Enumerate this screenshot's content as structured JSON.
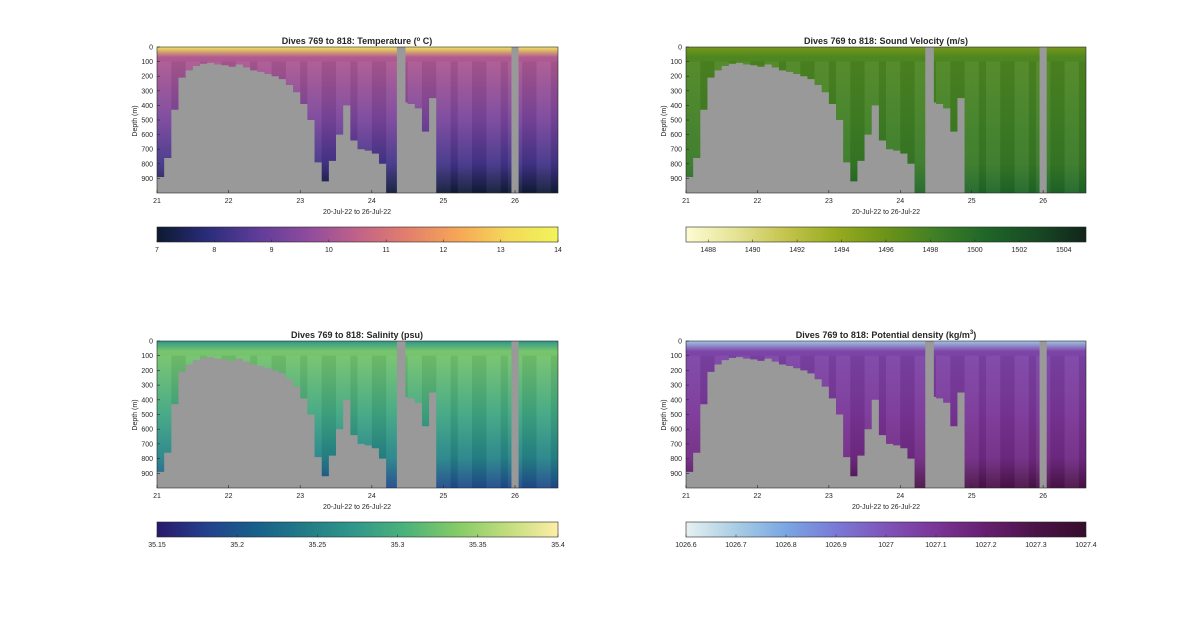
{
  "figure": {
    "background": "#ffffff",
    "land_color": "#999999",
    "axis_color": "#262626"
  },
  "chart_data": [
    {
      "type": "heatmap",
      "title": "Dives 769 to 818: Temperature (",
      "title_sup": "o",
      "title_after": " C)",
      "xlabel": "20-Jul-22 to 26-Jul-22",
      "ylabel": "Depth (m)",
      "xlim": [
        21,
        26.6
      ],
      "ylim": [
        0,
        1000
      ],
      "x_ticks": [
        21,
        22,
        23,
        24,
        25,
        26
      ],
      "y_ticks": [
        0,
        100,
        200,
        300,
        400,
        500,
        600,
        700,
        800,
        900
      ],
      "colorbar": {
        "range": [
          7,
          14
        ],
        "ticks": [
          "7",
          "8",
          "9",
          "10",
          "11",
          "12",
          "13",
          "14"
        ],
        "tick_values": [
          7,
          8,
          9,
          10,
          11,
          12,
          13,
          14
        ],
        "colormap": "thermal",
        "stops": [
          "#0c1a2e",
          "#2a2c7a",
          "#5e3c99",
          "#8e4b9e",
          "#c16288",
          "#e27f6c",
          "#f6a656",
          "#f4d958",
          "#f1f45a"
        ]
      },
      "profile": {
        "surface_value": 13.5,
        "upper_value": 10.2,
        "deep_value": 8.3,
        "bottom_value": 7.1
      }
    },
    {
      "type": "heatmap",
      "title": "Dives 769 to 818: Sound Velocity (m/s)",
      "title_sup": "",
      "title_after": "",
      "xlabel": "20-Jul-22 to 26-Jul-22",
      "ylabel": "Depth (m)",
      "xlim": [
        21,
        26.6
      ],
      "ylim": [
        0,
        1000
      ],
      "x_ticks": [
        21,
        22,
        23,
        24,
        25,
        26
      ],
      "y_ticks": [
        0,
        100,
        200,
        300,
        400,
        500,
        600,
        700,
        800,
        900
      ],
      "colorbar": {
        "range": [
          1487,
          1505
        ],
        "ticks": [
          "1488",
          "1490",
          "1492",
          "1494",
          "1496",
          "1498",
          "1500",
          "1502",
          "1504"
        ],
        "tick_values": [
          1488,
          1490,
          1492,
          1494,
          1496,
          1498,
          1500,
          1502,
          1504
        ],
        "colormap": "speed",
        "stops": [
          "#fdfcd2",
          "#e5e394",
          "#c3c44d",
          "#97ab1f",
          "#6c9418",
          "#3f7f25",
          "#1f6628",
          "#184a23",
          "#11251a"
        ]
      },
      "profile": {
        "surface_value": 1495.5,
        "upper_value": 1497.5,
        "deep_value": 1498.8,
        "bottom_value": 1500.5
      }
    },
    {
      "type": "heatmap",
      "title": "Dives 769 to 818: Salinity (psu)",
      "title_sup": "",
      "title_after": "",
      "xlabel": "20-Jul-22 to 26-Jul-22",
      "ylabel": "Depth (m)",
      "xlim": [
        21,
        26.6
      ],
      "ylim": [
        0,
        1000
      ],
      "x_ticks": [
        21,
        22,
        23,
        24,
        25,
        26
      ],
      "y_ticks": [
        0,
        100,
        200,
        300,
        400,
        500,
        600,
        700,
        800,
        900
      ],
      "colorbar": {
        "range": [
          35.15,
          35.4
        ],
        "ticks": [
          "35.15",
          "35.2",
          "35.25",
          "35.3",
          "35.35",
          "35.4"
        ],
        "tick_values": [
          35.15,
          35.2,
          35.25,
          35.3,
          35.35,
          35.4
        ],
        "colormap": "haline",
        "stops": [
          "#2a186c",
          "#23418e",
          "#17618a",
          "#227d87",
          "#32998a",
          "#4db47a",
          "#86cb66",
          "#c2dd7e",
          "#fdeea6"
        ]
      },
      "profile": {
        "surface_value": 35.27,
        "upper_value": 35.33,
        "deep_value": 35.25,
        "bottom_value": 35.19
      }
    },
    {
      "type": "heatmap",
      "title": "Dives 769 to 818: Potential density (kg/m",
      "title_sup": "3",
      "title_after": ")",
      "xlabel": "20-Jul-22 to 26-Jul-22",
      "ylabel": "Depth (m)",
      "xlim": [
        21,
        26.6
      ],
      "ylim": [
        0,
        1000
      ],
      "x_ticks": [
        21,
        22,
        23,
        24,
        25,
        26
      ],
      "y_ticks": [
        0,
        100,
        200,
        300,
        400,
        500,
        600,
        700,
        800,
        900
      ],
      "colorbar": {
        "range": [
          1026.6,
          1027.4
        ],
        "ticks": [
          "1026.6",
          "1026.7",
          "1026.8",
          "1026.9",
          "1027",
          "1027.1",
          "1027.2",
          "1027.3",
          "1027.4"
        ],
        "tick_values": [
          1026.6,
          1026.7,
          1026.8,
          1026.9,
          1027,
          1027.1,
          1027.2,
          1027.3,
          1027.4
        ],
        "colormap": "dense",
        "stops": [
          "#e6f1f1",
          "#a9cde4",
          "#7aa6e3",
          "#7a7ad6",
          "#7f54b8",
          "#7a3597",
          "#661f6f",
          "#4a1347",
          "#360d2b"
        ]
      },
      "profile": {
        "surface_value": 1026.72,
        "upper_value": 1027.05,
        "deep_value": 1027.15,
        "bottom_value": 1027.3
      }
    }
  ],
  "bathymetry": {
    "description_days": [
      21.0,
      21.1,
      21.2,
      21.3,
      21.4,
      21.5,
      21.6,
      21.7,
      21.8,
      21.9,
      22.0,
      22.1,
      22.2,
      22.3,
      22.4,
      22.5,
      22.6,
      22.7,
      22.8,
      22.9,
      23.0,
      23.1,
      23.2,
      23.3,
      23.4,
      23.5,
      23.6,
      23.7,
      23.8,
      23.9,
      24.0,
      24.1,
      24.2,
      24.3,
      24.4,
      24.5,
      24.6,
      24.7,
      24.8,
      24.9
    ],
    "seafloor_depth_m": [
      890,
      760,
      430,
      210,
      160,
      130,
      115,
      110,
      120,
      125,
      135,
      120,
      140,
      160,
      170,
      185,
      200,
      220,
      260,
      310,
      390,
      500,
      790,
      920,
      780,
      600,
      400,
      640,
      700,
      710,
      730,
      800,
      0,
      0,
      380,
      390,
      420,
      580,
      350,
      1000
    ]
  },
  "gaps": [
    {
      "start": 24.35,
      "end": 24.47
    },
    {
      "start": 25.95,
      "end": 26.05
    }
  ]
}
